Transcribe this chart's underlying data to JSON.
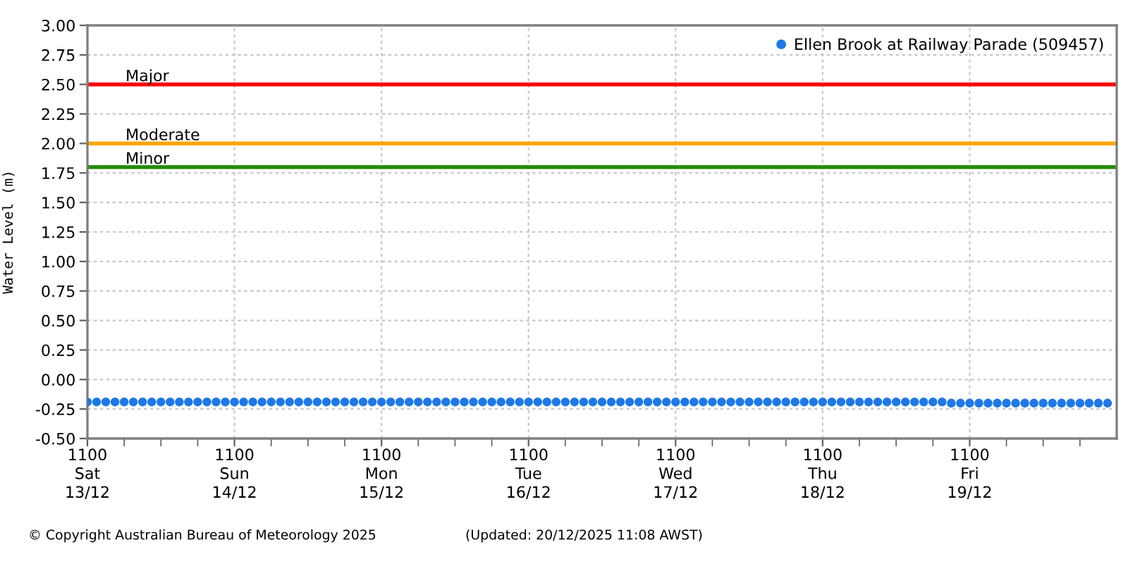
{
  "chart_data": {
    "type": "scatter",
    "ylabel": "Water Level (m)",
    "annotations": [
      "© Copyright Australian Bureau of Meteorology 2025",
      "(Updated: 20/12/2025 11:08 AWST)"
    ],
    "xlim": [
      "2025-12-13T11:00",
      "2025-12-20T11:00"
    ],
    "xticks": [
      {
        "value": "2025-12-13T11:00",
        "label": "1100\nSat\n13/12"
      },
      {
        "value": "2025-12-14T11:00",
        "label": "1100\nSun\n14/12"
      },
      {
        "value": "2025-12-15T11:00",
        "label": "1100\nMon\n15/12"
      },
      {
        "value": "2025-12-16T11:00",
        "label": "1100\nTue\n16/12"
      },
      {
        "value": "2025-12-17T11:00",
        "label": "1100\nWed\n17/12"
      },
      {
        "value": "2025-12-18T11:00",
        "label": "1100\nThu\n18/12"
      },
      {
        "value": "2025-12-19T11:00",
        "label": "1100\nFri\n19/12"
      },
      {
        "value": "2025-12-13T17:00",
        "label": null
      },
      {
        "value": "2025-12-13T23:00",
        "label": null
      },
      {
        "value": "2025-12-14T05:00",
        "label": null
      },
      {
        "value": "2025-12-14T17:00",
        "label": null
      },
      {
        "value": "2025-12-14T23:00",
        "label": null
      },
      {
        "value": "2025-12-15T05:00",
        "label": null
      },
      {
        "value": "2025-12-15T17:00",
        "label": null
      },
      {
        "value": "2025-12-15T23:00",
        "label": null
      },
      {
        "value": "2025-12-16T05:00",
        "label": null
      },
      {
        "value": "2025-12-16T17:00",
        "label": null
      },
      {
        "value": "2025-12-16T23:00",
        "label": null
      },
      {
        "value": "2025-12-17T05:00",
        "label": null
      },
      {
        "value": "2025-12-17T17:00",
        "label": null
      },
      {
        "value": "2025-12-17T23:00",
        "label": null
      },
      {
        "value": "2025-12-18T05:00",
        "label": null
      },
      {
        "value": "2025-12-18T17:00",
        "label": null
      },
      {
        "value": "2025-12-18T23:00",
        "label": null
      },
      {
        "value": "2025-12-19T05:00",
        "label": null
      },
      {
        "value": "2025-12-19T17:00",
        "label": null
      },
      {
        "value": "2025-12-19T23:00",
        "label": null
      },
      {
        "value": "2025-12-20T05:00",
        "label": null
      }
    ],
    "ylim": [
      -0.5,
      3.0
    ],
    "yticks": [
      {
        "value": -0.5,
        "label": "-0.50"
      },
      {
        "value": -0.25,
        "label": "-0.25"
      },
      {
        "value": 0,
        "label": "0.00"
      },
      {
        "value": 0.25,
        "label": "0.25"
      },
      {
        "value": 0.5,
        "label": "0.50"
      },
      {
        "value": 0.75,
        "label": "0.75"
      },
      {
        "value": 1.0,
        "label": "1.00"
      },
      {
        "value": 1.25,
        "label": "1.25"
      },
      {
        "value": 1.5,
        "label": "1.50"
      },
      {
        "value": 1.75,
        "label": "1.75"
      },
      {
        "value": 2.0,
        "label": "2.00"
      },
      {
        "value": 2.25,
        "label": "2.25"
      },
      {
        "value": 2.5,
        "label": "2.50"
      },
      {
        "value": 2.75,
        "label": "2.75"
      },
      {
        "value": 3.0,
        "label": "3.00"
      }
    ],
    "grid": true,
    "legend": "top right",
    "marker": "circle",
    "ref_lines": [
      {
        "axis": "y",
        "value": 2.5,
        "label": "Major",
        "color": "#ff0000",
        "line_style": "solid"
      },
      {
        "axis": "y",
        "value": 2.0,
        "label": "Moderate",
        "color": "#ffa500",
        "line_style": "solid"
      },
      {
        "axis": "y",
        "value": 1.8,
        "label": "Minor",
        "color": "#228b00",
        "line_style": "solid"
      }
    ],
    "series": [
      {
        "name": "Ellen Brook at Railway Parade (509457)",
        "color": "#1e78e6",
        "x": [
          "2025-12-13T11:00",
          "2025-12-13T12:30",
          "2025-12-13T14:00",
          "2025-12-13T15:30",
          "2025-12-13T17:00",
          "2025-12-13T18:30",
          "2025-12-13T20:00",
          "2025-12-13T21:30",
          "2025-12-13T23:00",
          "2025-12-14T00:30",
          "2025-12-14T02:00",
          "2025-12-14T03:30",
          "2025-12-14T05:00",
          "2025-12-14T06:30",
          "2025-12-14T08:00",
          "2025-12-14T09:30",
          "2025-12-14T11:00",
          "2025-12-14T12:30",
          "2025-12-14T14:00",
          "2025-12-14T15:30",
          "2025-12-14T17:00",
          "2025-12-14T18:30",
          "2025-12-14T20:00",
          "2025-12-14T21:30",
          "2025-12-14T23:00",
          "2025-12-15T00:30",
          "2025-12-15T02:00",
          "2025-12-15T03:30",
          "2025-12-15T05:00",
          "2025-12-15T06:30",
          "2025-12-15T08:00",
          "2025-12-15T09:30",
          "2025-12-15T11:00",
          "2025-12-15T12:30",
          "2025-12-15T14:00",
          "2025-12-15T15:30",
          "2025-12-15T17:00",
          "2025-12-15T18:30",
          "2025-12-15T20:00",
          "2025-12-15T21:30",
          "2025-12-15T23:00",
          "2025-12-16T00:30",
          "2025-12-16T02:00",
          "2025-12-16T03:30",
          "2025-12-16T05:00",
          "2025-12-16T06:30",
          "2025-12-16T08:00",
          "2025-12-16T09:30",
          "2025-12-16T11:00",
          "2025-12-16T12:30",
          "2025-12-16T14:00",
          "2025-12-16T15:30",
          "2025-12-16T17:00",
          "2025-12-16T18:30",
          "2025-12-16T20:00",
          "2025-12-16T21:30",
          "2025-12-16T23:00",
          "2025-12-17T00:30",
          "2025-12-17T02:00",
          "2025-12-17T03:30",
          "2025-12-17T05:00",
          "2025-12-17T06:30",
          "2025-12-17T08:00",
          "2025-12-17T09:30",
          "2025-12-17T11:00",
          "2025-12-17T12:30",
          "2025-12-17T14:00",
          "2025-12-17T15:30",
          "2025-12-17T17:00",
          "2025-12-17T18:30",
          "2025-12-17T20:00",
          "2025-12-17T21:30",
          "2025-12-17T23:00",
          "2025-12-18T00:30",
          "2025-12-18T02:00",
          "2025-12-18T03:30",
          "2025-12-18T05:00",
          "2025-12-18T06:30",
          "2025-12-18T08:00",
          "2025-12-18T09:30",
          "2025-12-18T11:00",
          "2025-12-18T12:30",
          "2025-12-18T14:00",
          "2025-12-18T15:30",
          "2025-12-18T17:00",
          "2025-12-18T18:30",
          "2025-12-18T20:00",
          "2025-12-18T21:30",
          "2025-12-18T23:00",
          "2025-12-19T00:30",
          "2025-12-19T02:00",
          "2025-12-19T03:30",
          "2025-12-19T05:00",
          "2025-12-19T06:30",
          "2025-12-19T08:00",
          "2025-12-19T09:30",
          "2025-12-19T11:00",
          "2025-12-19T12:30",
          "2025-12-19T14:00",
          "2025-12-19T15:30",
          "2025-12-19T17:00",
          "2025-12-19T18:30",
          "2025-12-19T20:00",
          "2025-12-19T21:30",
          "2025-12-19T23:00",
          "2025-12-20T00:30",
          "2025-12-20T02:00",
          "2025-12-20T03:30",
          "2025-12-20T05:00",
          "2025-12-20T06:30",
          "2025-12-20T08:00",
          "2025-12-20T09:30"
        ],
        "values": [
          -0.19,
          -0.19,
          -0.19,
          -0.19,
          -0.19,
          -0.19,
          -0.19,
          -0.19,
          -0.19,
          -0.19,
          -0.19,
          -0.19,
          -0.19,
          -0.19,
          -0.19,
          -0.19,
          -0.19,
          -0.19,
          -0.19,
          -0.19,
          -0.19,
          -0.19,
          -0.19,
          -0.19,
          -0.19,
          -0.19,
          -0.19,
          -0.19,
          -0.19,
          -0.19,
          -0.19,
          -0.19,
          -0.19,
          -0.19,
          -0.19,
          -0.19,
          -0.19,
          -0.19,
          -0.19,
          -0.19,
          -0.19,
          -0.19,
          -0.19,
          -0.19,
          -0.19,
          -0.19,
          -0.19,
          -0.19,
          -0.19,
          -0.19,
          -0.19,
          -0.19,
          -0.19,
          -0.19,
          -0.19,
          -0.19,
          -0.19,
          -0.19,
          -0.19,
          -0.19,
          -0.19,
          -0.19,
          -0.19,
          -0.19,
          -0.19,
          -0.19,
          -0.19,
          -0.19,
          -0.19,
          -0.19,
          -0.19,
          -0.19,
          -0.19,
          -0.19,
          -0.19,
          -0.19,
          -0.19,
          -0.19,
          -0.19,
          -0.19,
          -0.19,
          -0.19,
          -0.19,
          -0.19,
          -0.19,
          -0.19,
          -0.19,
          -0.19,
          -0.19,
          -0.19,
          -0.19,
          -0.19,
          -0.19,
          -0.19,
          -0.2,
          -0.2,
          -0.2,
          -0.2,
          -0.2,
          -0.2,
          -0.2,
          -0.2,
          -0.2,
          -0.2,
          -0.2,
          -0.2,
          -0.2,
          -0.2,
          -0.2,
          -0.2,
          -0.2,
          -0.2
        ]
      }
    ]
  }
}
